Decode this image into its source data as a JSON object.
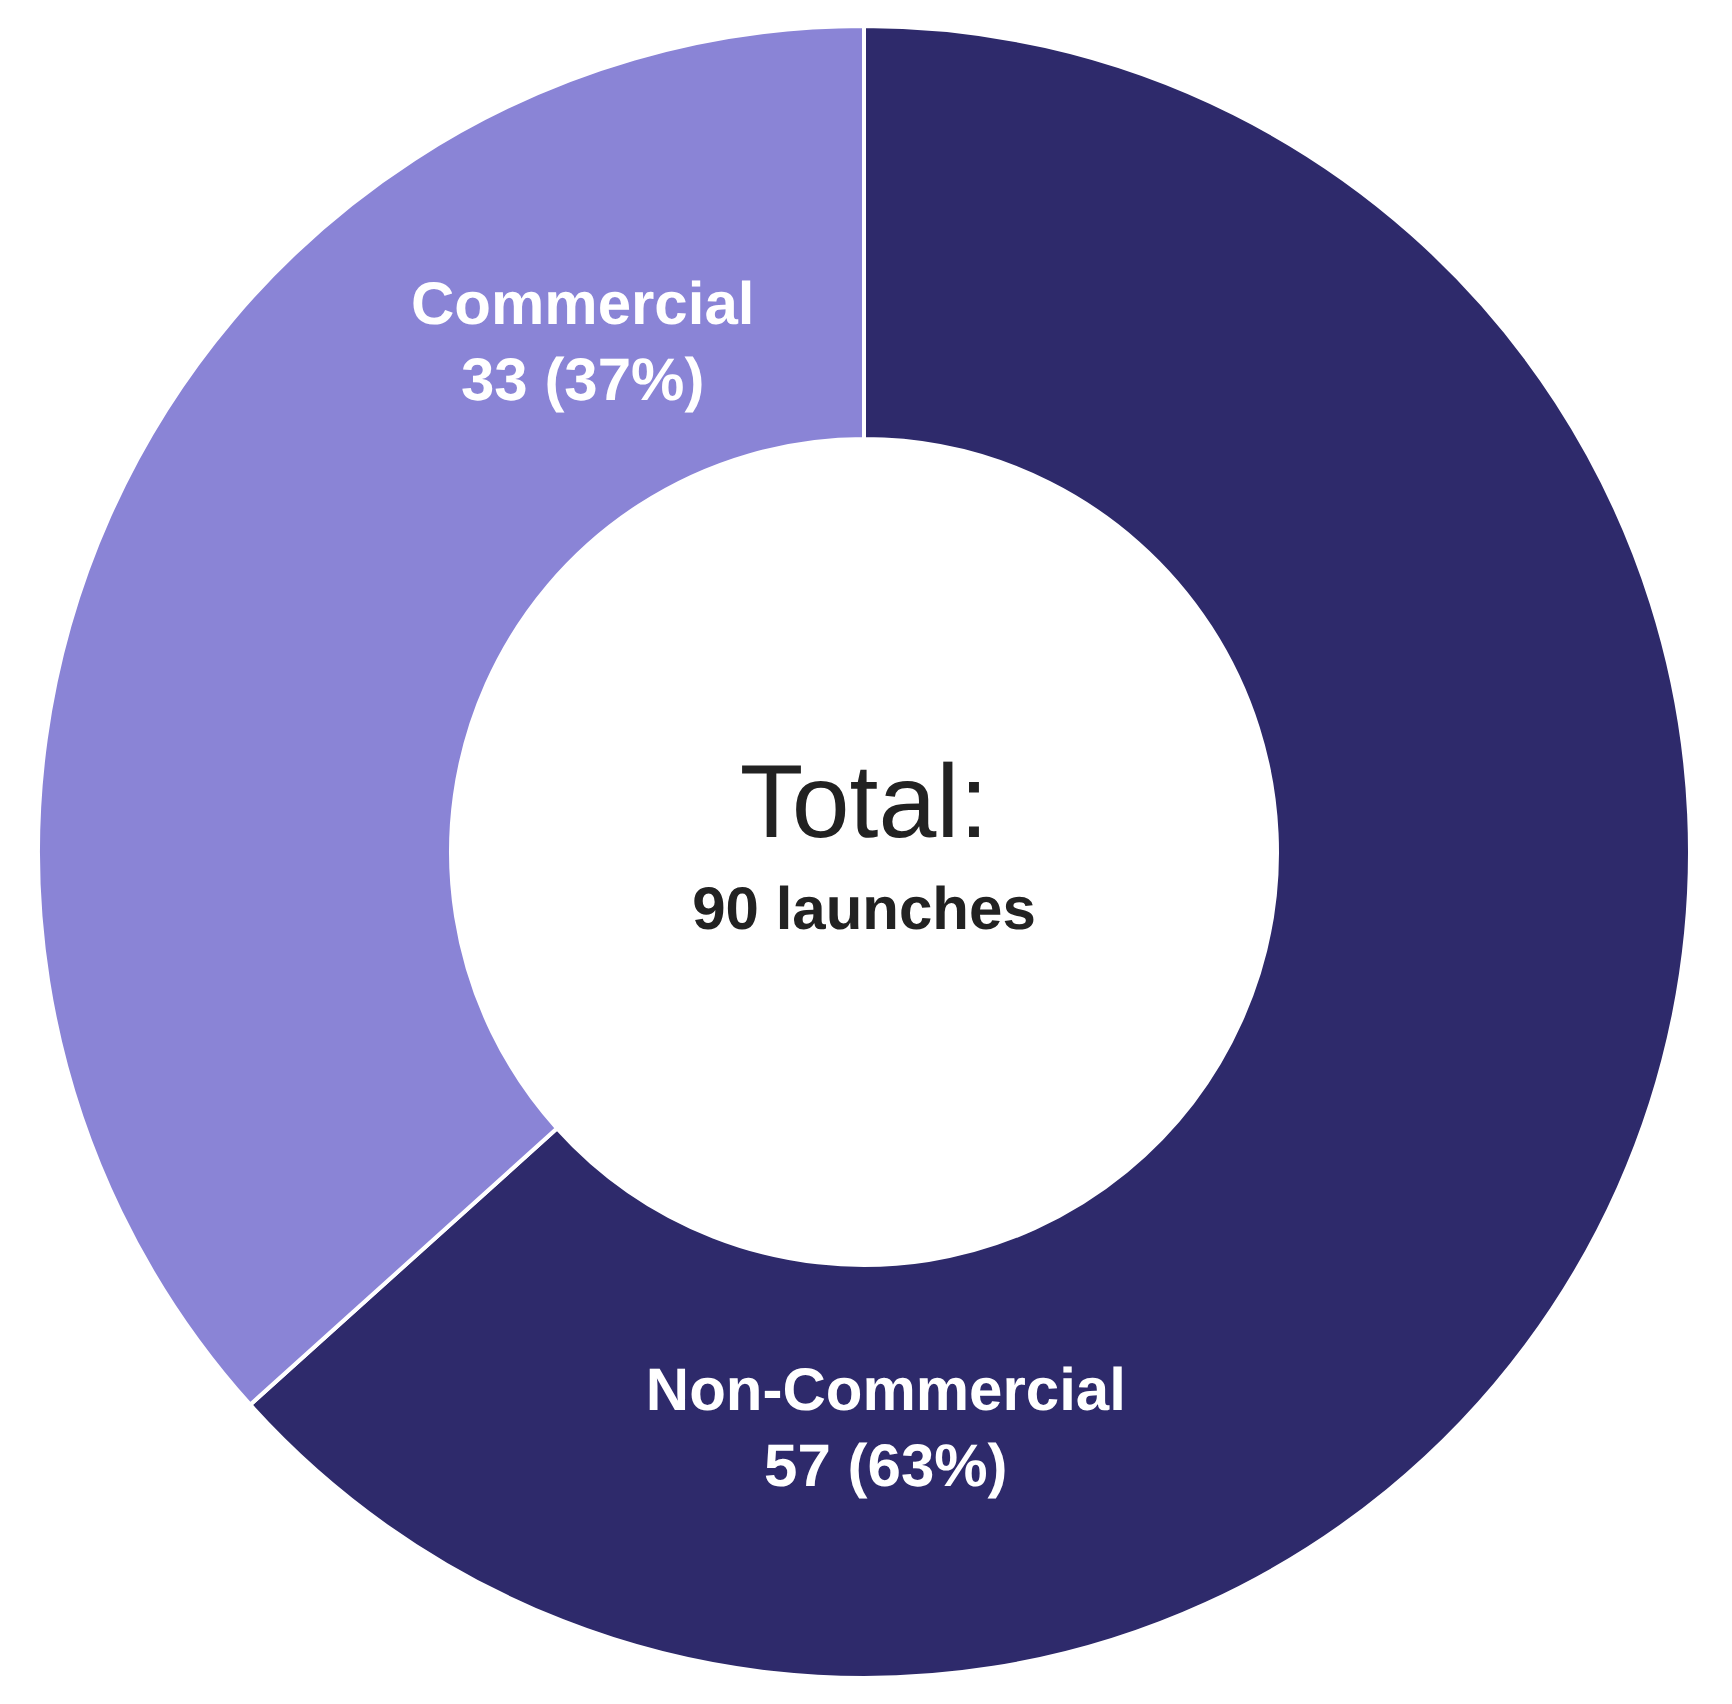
{
  "chart_data": {
    "type": "donut",
    "categories": [
      "Non-Commercial",
      "Commercial"
    ],
    "values": [
      57,
      33
    ],
    "value_labels": [
      "57 (63%)",
      "33 (37%)"
    ],
    "colors": [
      "#2e2a6b",
      "#8a84d6"
    ],
    "annotations": [
      "Total:",
      "90 launches"
    ],
    "legend": false
  }
}
